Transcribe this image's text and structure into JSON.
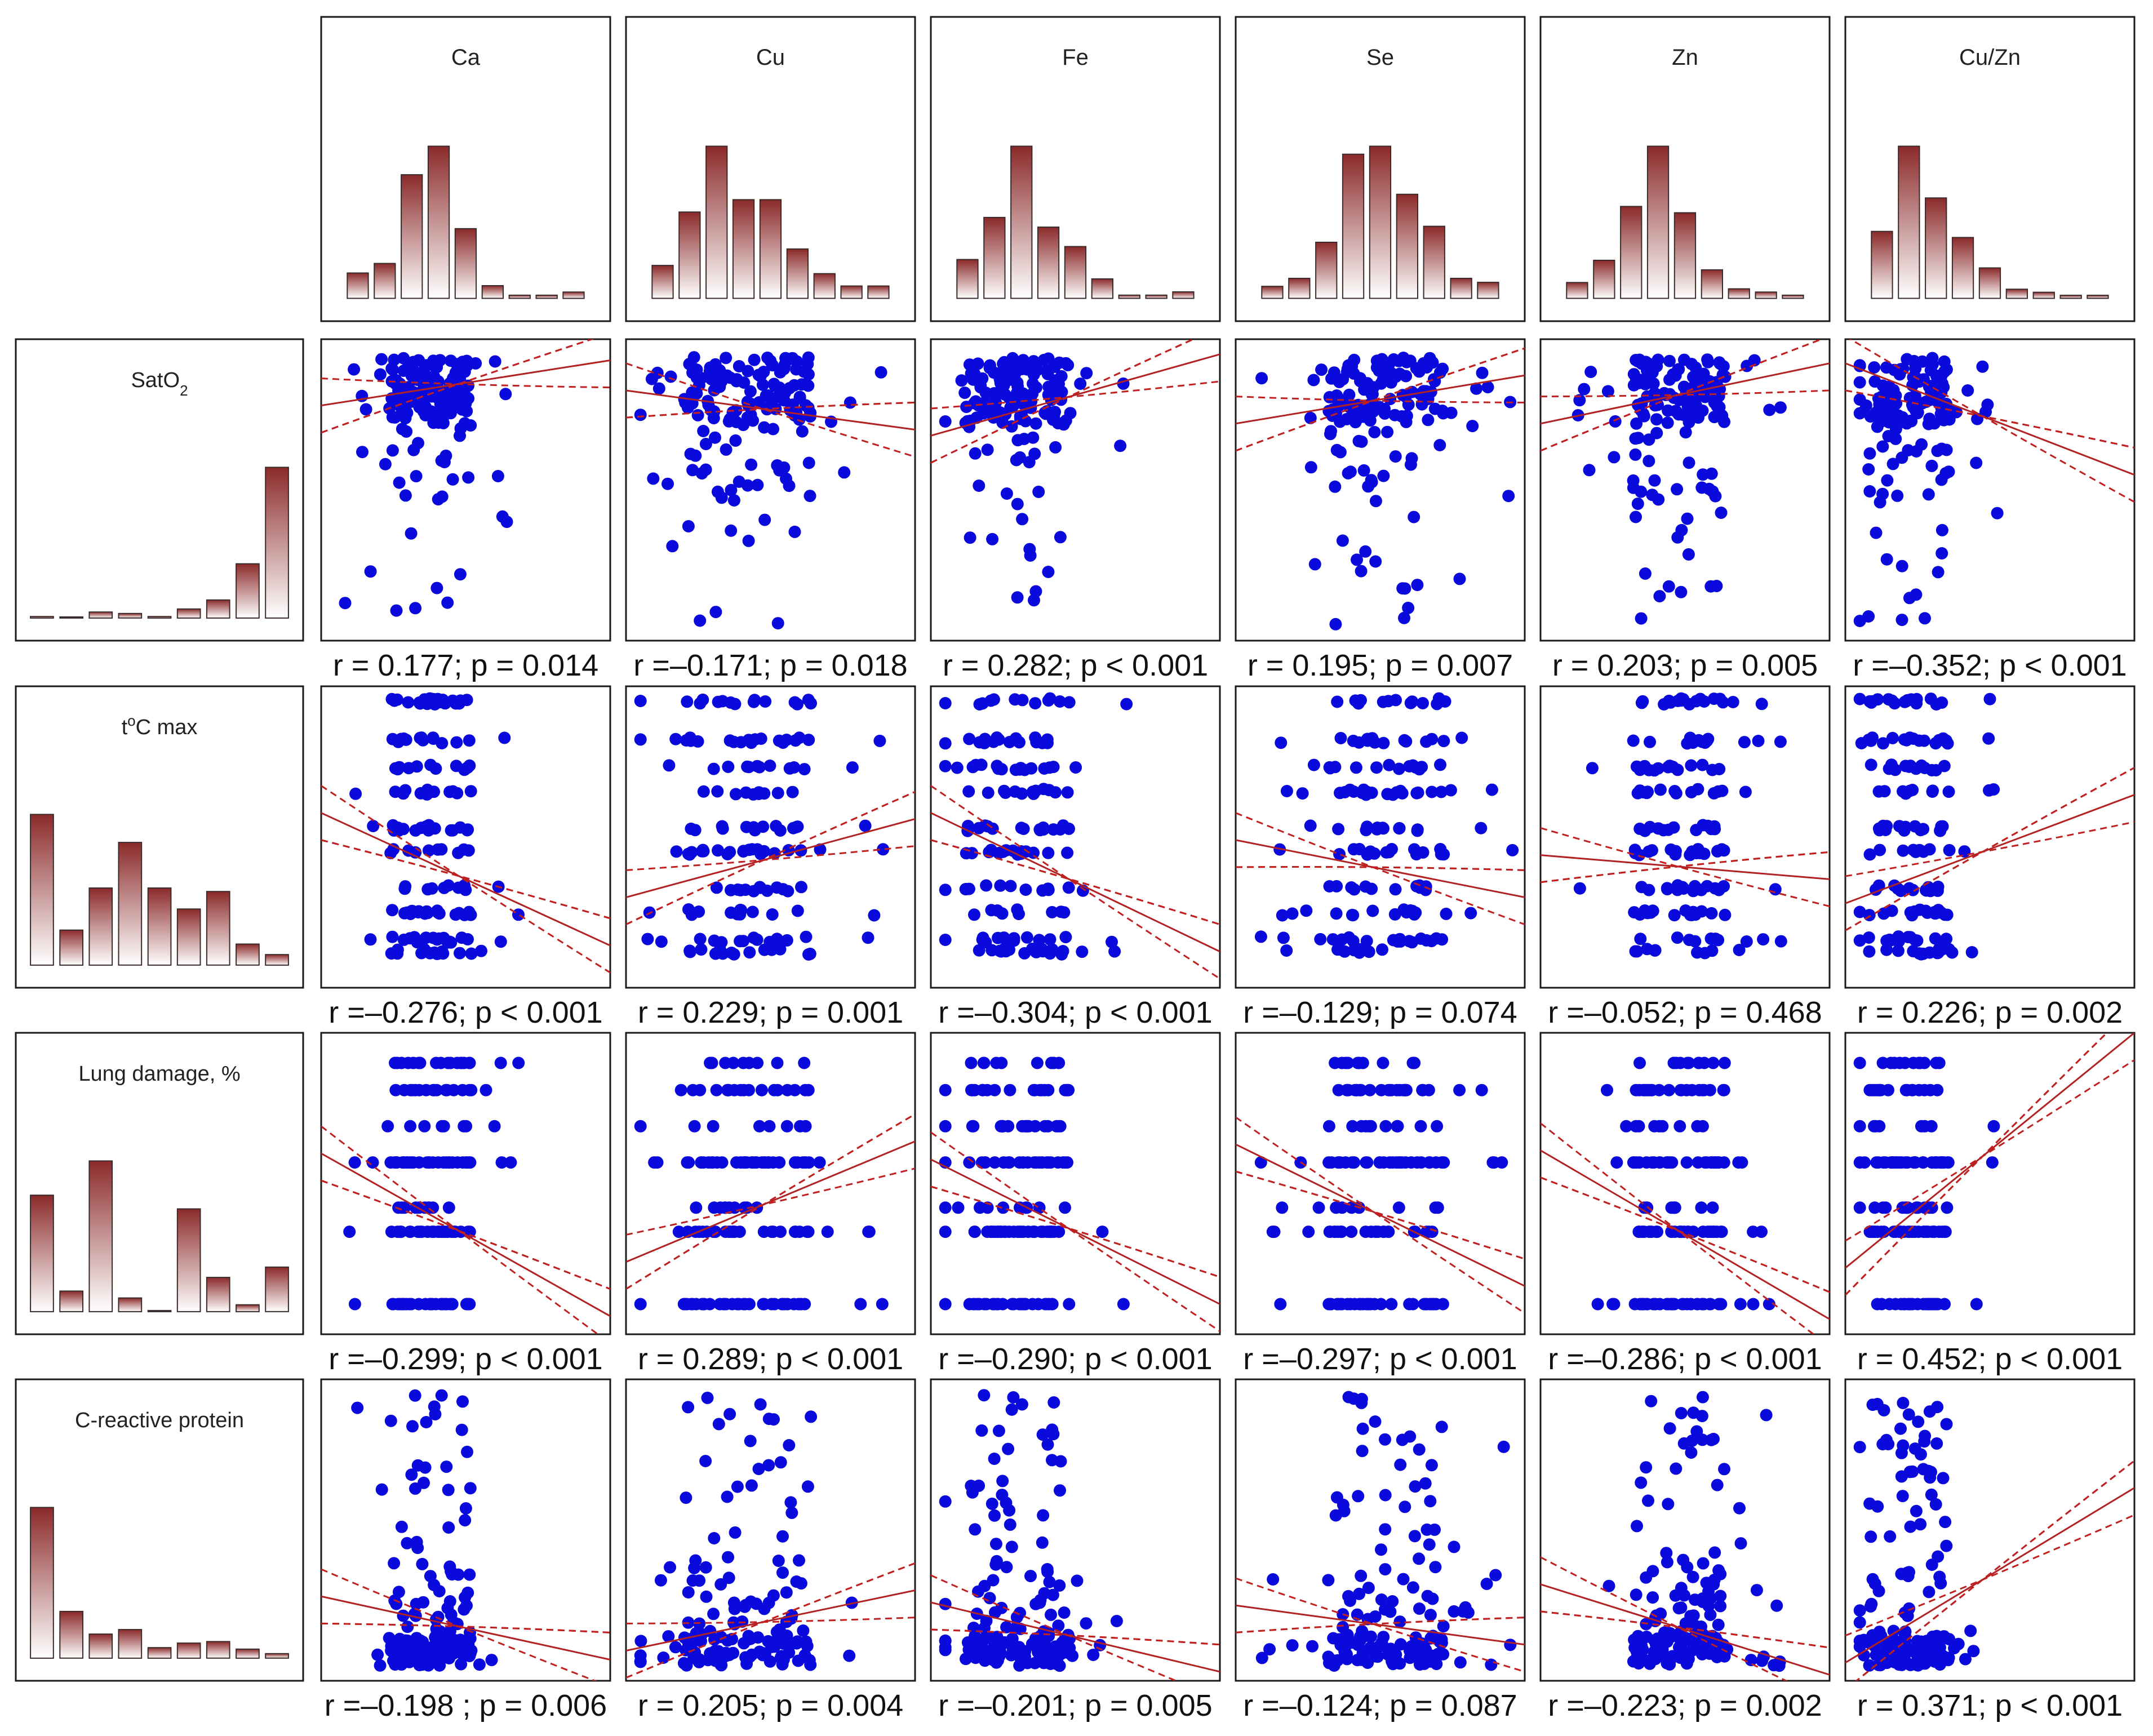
{
  "colors": {
    "point": "#0a0adc",
    "fit_line": "#b22222",
    "bar_top": "#8b2a2a",
    "bar_bottom": "#ffffff"
  },
  "columns": [
    "Ca",
    "Cu",
    "Fe",
    "Se",
    "Zn",
    "Cu/Zn"
  ],
  "rows": [
    {
      "key": "sat",
      "label": "SatO",
      "sub": "2"
    },
    {
      "key": "temp",
      "label": "C max",
      "sup": "o",
      "prefix": "t"
    },
    {
      "key": "lung",
      "label": "Lung damage, %"
    },
    {
      "key": "crp",
      "label": "C-reactive protein"
    }
  ],
  "chart_data": {
    "type": "scatter",
    "title": "",
    "description_type": "scatterplot matrix with marginal histograms",
    "column_histograms": [
      {
        "variable": "Ca",
        "counts": [
          8,
          11,
          39,
          48,
          22,
          4,
          1,
          1,
          2
        ]
      },
      {
        "variable": "Cu",
        "counts": [
          8,
          21,
          37,
          24,
          24,
          12,
          6,
          3,
          3
        ]
      },
      {
        "variable": "Fe",
        "counts": [
          12,
          25,
          47,
          22,
          16,
          6,
          1,
          1,
          2
        ]
      },
      {
        "variable": "Se",
        "counts": [
          3,
          5,
          14,
          36,
          38,
          26,
          18,
          5,
          4
        ]
      },
      {
        "variable": "Zn",
        "counts": [
          5,
          12,
          29,
          48,
          27,
          9,
          3,
          2,
          1
        ]
      },
      {
        "variable": "Cu/Zn",
        "counts": [
          22,
          50,
          33,
          20,
          10,
          3,
          2,
          1,
          1
        ]
      }
    ],
    "row_histograms": [
      {
        "variable": "SatO2",
        "counts": [
          1,
          0,
          4,
          3,
          1,
          6,
          12,
          36,
          100
        ]
      },
      {
        "variable": "t°C max",
        "counts": [
          43,
          10,
          22,
          35,
          22,
          16,
          21,
          6,
          3
        ]
      },
      {
        "variable": "Lung damage, %",
        "counts": [
          34,
          6,
          44,
          4,
          0,
          30,
          10,
          2,
          13
        ]
      },
      {
        "variable": "C-reactive protein",
        "counts": [
          100,
          31,
          16,
          19,
          7,
          10,
          11,
          6,
          3
        ]
      }
    ],
    "correlations": [
      [
        {
          "r": "0.177",
          "p": "p = 0.014"
        },
        {
          "r": "–0.171",
          "p": "p = 0.018"
        },
        {
          "r": "0.282",
          "p": "p < 0.001"
        },
        {
          "r": "0.195",
          "p": "p = 0.007"
        },
        {
          "r": "0.203",
          "p": "p = 0.005"
        },
        {
          "r": "–0.352",
          "p": "p < 0.001"
        }
      ],
      [
        {
          "r": "–0.276",
          "p": "p < 0.001"
        },
        {
          "r": "0.229",
          "p": "p = 0.001"
        },
        {
          "r": "–0.304",
          "p": "p < 0.001"
        },
        {
          "r": "–0.129",
          "p": "p = 0.074"
        },
        {
          "r": "–0.052",
          "p": "p = 0.468"
        },
        {
          "r": "0.226",
          "p": "p = 0.002"
        }
      ],
      [
        {
          "r": "–0.299",
          "p": "p < 0.001"
        },
        {
          "r": "0.289",
          "p": "p < 0.001"
        },
        {
          "r": "–0.290",
          "p": "p < 0.001"
        },
        {
          "r": "–0.297",
          "p": "p < 0.001"
        },
        {
          "r": "–0.286",
          "p": "p < 0.001"
        },
        {
          "r": "0.452",
          "p": "p < 0.001"
        }
      ],
      [
        {
          "r": "–0.198 ",
          "p": "p = 0.006"
        },
        {
          "r": "0.205",
          "p": "p = 0.004"
        },
        {
          "r": "–0.201",
          "p": "p = 0.005"
        },
        {
          "r": "–0.124",
          "p": "p = 0.087"
        },
        {
          "r": "–0.223",
          "p": "p = 0.002"
        },
        {
          "r": "0.371",
          "p": "p < 0.001"
        }
      ]
    ],
    "labels_text": [
      [
        "r = 0.177; p = 0.014",
        "r =–0.171; p = 0.018",
        "r = 0.282; p < 0.001",
        "r = 0.195; p = 0.007",
        "r = 0.203; p = 0.005",
        "r =–0.352; p < 0.001"
      ],
      [
        "r =–0.276; p < 0.001",
        "r = 0.229; p = 0.001",
        "r =–0.304; p < 0.001",
        "r =–0.129; p = 0.074",
        "r =–0.052; p = 0.468",
        "r = 0.226; p = 0.002"
      ],
      [
        "r =–0.299; p < 0.001",
        "r = 0.289; p < 0.001",
        "r =–0.290; p < 0.001",
        "r =–0.297; p < 0.001",
        "r =–0.286; p < 0.001",
        "r = 0.452; p < 0.001"
      ],
      [
        "r =–0.198 ; p = 0.006",
        "r = 0.205; p = 0.004",
        "r =–0.201; p = 0.005",
        "r =–0.124; p = 0.087",
        "r =–0.223; p = 0.002",
        "r = 0.371; p < 0.001"
      ]
    ],
    "fits": [
      [
        {
          "y0": 0.78,
          "y1": 0.93
        },
        {
          "y0": 0.83,
          "y1": 0.7
        },
        {
          "y0": 0.68,
          "y1": 0.95
        },
        {
          "y0": 0.72,
          "y1": 0.88
        },
        {
          "y0": 0.72,
          "y1": 0.92
        },
        {
          "y0": 0.92,
          "y1": 0.55
        }
      ],
      [
        {
          "y0": 0.58,
          "y1": 0.14
        },
        {
          "y0": 0.3,
          "y1": 0.56
        },
        {
          "y0": 0.58,
          "y1": 0.12
        },
        {
          "y0": 0.49,
          "y1": 0.3
        },
        {
          "y0": 0.44,
          "y1": 0.36
        },
        {
          "y0": 0.28,
          "y1": 0.64
        }
      ],
      [
        {
          "y0": 0.6,
          "y1": 0.06
        },
        {
          "y0": 0.24,
          "y1": 0.64
        },
        {
          "y0": 0.58,
          "y1": 0.1
        },
        {
          "y0": 0.63,
          "y1": 0.16
        },
        {
          "y0": 0.61,
          "y1": 0.05
        },
        {
          "y0": 0.22,
          "y1": 1.0
        }
      ],
      [
        {
          "y0": 0.28,
          "y1": 0.07
        },
        {
          "y0": 0.1,
          "y1": 0.3
        },
        {
          "y0": 0.26,
          "y1": 0.03
        },
        {
          "y0": 0.25,
          "y1": 0.12
        },
        {
          "y0": 0.32,
          "y1": 0.02
        },
        {
          "y0": 0.06,
          "y1": 0.64
        }
      ]
    ]
  }
}
